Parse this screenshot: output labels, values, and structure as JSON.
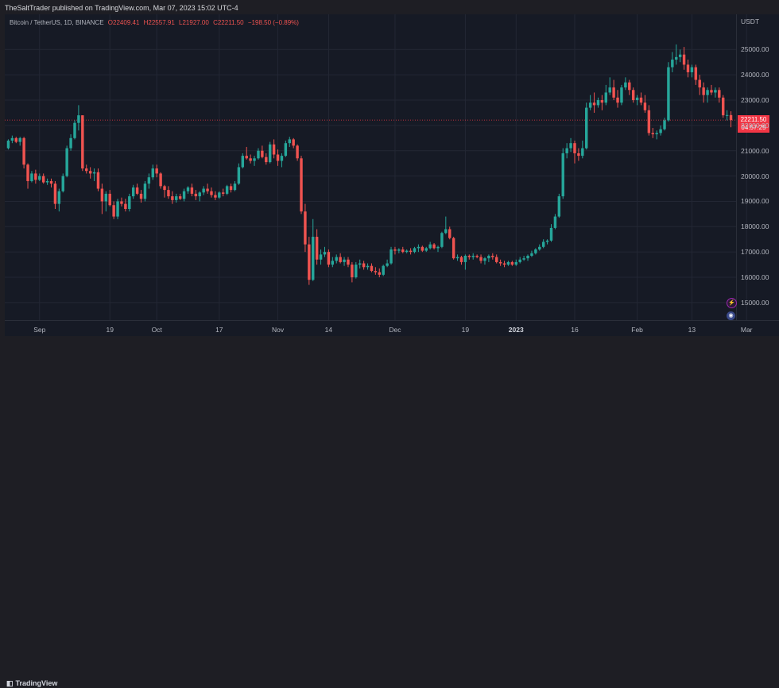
{
  "header": {
    "publisher_line": "TheSaltTrader published on TradingView.com, Mar 07, 2023 15:02 UTC-4"
  },
  "legend": {
    "symbol": "Bitcoin / TetherUS, 1D, BINANCE",
    "open": "O22409.41",
    "high": "H22557.91",
    "low": "L21927.00",
    "close": "C22211.50",
    "change": "−198.50 (−0.89%)"
  },
  "price_axis": {
    "unit": "USDT",
    "last_price": "22211.50",
    "countdown": "04:57:25"
  },
  "footer": {
    "brand": "TradingView"
  },
  "colors": {
    "up": "#26a69a",
    "down": "#ef5350",
    "background": "#161a25",
    "grid": "#232734",
    "last_price_line": "#f23645"
  },
  "chart_data": {
    "type": "candlestick",
    "ylabel": "USDT",
    "ylim": [
      14400,
      25700
    ],
    "y_ticks": [
      "15000.00",
      "16000.00",
      "17000.00",
      "18000.00",
      "19000.00",
      "20000.00",
      "21000.00",
      "22000.00",
      "23000.00",
      "24000.00",
      "25000.00"
    ],
    "x_ticks": [
      {
        "label": "Sep",
        "i": 8
      },
      {
        "label": "19",
        "i": 26
      },
      {
        "label": "Oct",
        "i": 38
      },
      {
        "label": "17",
        "i": 54
      },
      {
        "label": "Nov",
        "i": 69
      },
      {
        "label": "14",
        "i": 82
      },
      {
        "label": "Dec",
        "i": 99
      },
      {
        "label": "19",
        "i": 117
      },
      {
        "label": "2023",
        "i": 130,
        "bold": true
      },
      {
        "label": "16",
        "i": 145
      },
      {
        "label": "Feb",
        "i": 161
      },
      {
        "label": "13",
        "i": 175
      },
      {
        "label": "Mar",
        "i": 189
      }
    ],
    "last_price": 22211.5,
    "candles": [
      [
        21100,
        21450,
        21050,
        21400
      ],
      [
        21400,
        21600,
        21300,
        21500
      ],
      [
        21500,
        21550,
        21300,
        21350
      ],
      [
        21350,
        21550,
        21200,
        21500
      ],
      [
        21500,
        21550,
        20300,
        20450
      ],
      [
        20450,
        20500,
        19500,
        19800
      ],
      [
        19800,
        20200,
        19750,
        20100
      ],
      [
        20100,
        20250,
        19700,
        19850
      ],
      [
        19850,
        20100,
        19800,
        20000
      ],
      [
        20000,
        20100,
        19700,
        19750
      ],
      [
        19750,
        19900,
        19650,
        19800
      ],
      [
        19800,
        19900,
        19550,
        19700
      ],
      [
        19700,
        19800,
        18700,
        18900
      ],
      [
        18900,
        19500,
        18600,
        19400
      ],
      [
        19400,
        20100,
        19350,
        20000
      ],
      [
        20000,
        21200,
        19950,
        21100
      ],
      [
        21100,
        21650,
        21000,
        21500
      ],
      [
        21500,
        22200,
        21450,
        22100
      ],
      [
        22100,
        22800,
        21800,
        22400
      ],
      [
        22400,
        22400,
        20200,
        20300
      ],
      [
        20300,
        20450,
        20100,
        20200
      ],
      [
        20200,
        20350,
        19900,
        20100
      ],
      [
        20100,
        20300,
        19800,
        20150
      ],
      [
        20150,
        20300,
        19400,
        19500
      ],
      [
        19500,
        19700,
        18500,
        19000
      ],
      [
        19000,
        19400,
        18600,
        19300
      ],
      [
        19300,
        19450,
        18800,
        18850
      ],
      [
        18850,
        19000,
        18300,
        18400
      ],
      [
        18400,
        19100,
        18300,
        19000
      ],
      [
        19000,
        19150,
        18800,
        18900
      ],
      [
        18900,
        19100,
        18600,
        18700
      ],
      [
        18700,
        19300,
        18600,
        19200
      ],
      [
        19200,
        19650,
        19100,
        19550
      ],
      [
        19550,
        19700,
        19250,
        19300
      ],
      [
        19300,
        19450,
        18950,
        19100
      ],
      [
        19100,
        19800,
        19000,
        19700
      ],
      [
        19700,
        20100,
        19500,
        19950
      ],
      [
        19950,
        20450,
        19850,
        20300
      ],
      [
        20300,
        20450,
        19950,
        20100
      ],
      [
        20100,
        20150,
        19500,
        19600
      ],
      [
        19600,
        19650,
        19150,
        19450
      ],
      [
        19450,
        19600,
        19100,
        19200
      ],
      [
        19200,
        19400,
        18900,
        19050
      ],
      [
        19050,
        19300,
        18950,
        19200
      ],
      [
        19200,
        19300,
        19050,
        19100
      ],
      [
        19100,
        19500,
        19000,
        19400
      ],
      [
        19400,
        19600,
        19300,
        19550
      ],
      [
        19550,
        19700,
        19200,
        19300
      ],
      [
        19300,
        19450,
        19050,
        19200
      ],
      [
        19200,
        19400,
        19000,
        19350
      ],
      [
        19350,
        19600,
        19250,
        19500
      ],
      [
        19500,
        19700,
        19300,
        19400
      ],
      [
        19400,
        19550,
        19150,
        19250
      ],
      [
        19250,
        19400,
        19050,
        19150
      ],
      [
        19150,
        19400,
        19100,
        19350
      ],
      [
        19350,
        19500,
        19200,
        19300
      ],
      [
        19300,
        19650,
        19250,
        19600
      ],
      [
        19600,
        19700,
        19350,
        19450
      ],
      [
        19450,
        19800,
        19400,
        19700
      ],
      [
        19700,
        20500,
        19650,
        20350
      ],
      [
        20350,
        20900,
        20300,
        20800
      ],
      [
        20800,
        21150,
        20650,
        20700
      ],
      [
        20700,
        20850,
        20500,
        20600
      ],
      [
        20600,
        20800,
        20400,
        20700
      ],
      [
        20700,
        21100,
        20650,
        21000
      ],
      [
        21000,
        21200,
        20700,
        20750
      ],
      [
        20750,
        20900,
        20450,
        20550
      ],
      [
        20550,
        21350,
        20500,
        21250
      ],
      [
        21250,
        21450,
        20700,
        20850
      ],
      [
        20850,
        21050,
        20400,
        20600
      ],
      [
        20600,
        20900,
        20350,
        20800
      ],
      [
        20800,
        21400,
        20750,
        21300
      ],
      [
        21300,
        21550,
        21150,
        21450
      ],
      [
        21450,
        21500,
        21100,
        21200
      ],
      [
        21200,
        21250,
        20600,
        20700
      ],
      [
        20700,
        20800,
        18500,
        18600
      ],
      [
        18600,
        18900,
        17000,
        17300
      ],
      [
        17300,
        17600,
        15700,
        15900
      ],
      [
        15900,
        18300,
        15850,
        17600
      ],
      [
        17600,
        17900,
        16500,
        16700
      ],
      [
        16700,
        17100,
        16500,
        16900
      ],
      [
        16900,
        17200,
        16800,
        17000
      ],
      [
        17000,
        17100,
        16400,
        16500
      ],
      [
        16500,
        16800,
        16400,
        16650
      ],
      [
        16650,
        16900,
        16550,
        16800
      ],
      [
        16800,
        16950,
        16550,
        16600
      ],
      [
        16600,
        16800,
        16450,
        16700
      ],
      [
        16700,
        16800,
        16400,
        16500
      ],
      [
        16500,
        16600,
        15800,
        16000
      ],
      [
        16000,
        16600,
        15950,
        16500
      ],
      [
        16500,
        16700,
        16350,
        16550
      ],
      [
        16550,
        16650,
        16300,
        16400
      ],
      [
        16400,
        16550,
        16300,
        16450
      ],
      [
        16450,
        16550,
        16200,
        16250
      ],
      [
        16250,
        16400,
        16100,
        16200
      ],
      [
        16200,
        16350,
        16000,
        16100
      ],
      [
        16100,
        16500,
        16050,
        16450
      ],
      [
        16450,
        16700,
        16400,
        16550
      ],
      [
        16550,
        17200,
        16500,
        17100
      ],
      [
        17100,
        17200,
        16900,
        17050
      ],
      [
        17050,
        17150,
        16950,
        17100
      ],
      [
        17100,
        17200,
        16950,
        17000
      ],
      [
        17000,
        17100,
        16950,
        17050
      ],
      [
        17050,
        17150,
        16900,
        17000
      ],
      [
        17000,
        17200,
        16950,
        17150
      ],
      [
        17150,
        17300,
        17000,
        17200
      ],
      [
        17200,
        17250,
        17000,
        17050
      ],
      [
        17050,
        17200,
        17000,
        17150
      ],
      [
        17150,
        17400,
        17100,
        17300
      ],
      [
        17300,
        17350,
        17100,
        17150
      ],
      [
        17150,
        17250,
        17000,
        17200
      ],
      [
        17200,
        17800,
        17150,
        17750
      ],
      [
        17750,
        18400,
        17700,
        17900
      ],
      [
        17900,
        18000,
        17500,
        17550
      ],
      [
        17550,
        17600,
        16700,
        16750
      ],
      [
        16750,
        16900,
        16650,
        16800
      ],
      [
        16800,
        16850,
        16500,
        16600
      ],
      [
        16600,
        16900,
        16300,
        16850
      ],
      [
        16850,
        16900,
        16700,
        16800
      ],
      [
        16800,
        16950,
        16700,
        16850
      ],
      [
        16850,
        16900,
        16750,
        16800
      ],
      [
        16800,
        16900,
        16550,
        16650
      ],
      [
        16650,
        16800,
        16500,
        16750
      ],
      [
        16750,
        16900,
        16600,
        16850
      ],
      [
        16850,
        16950,
        16700,
        16800
      ],
      [
        16800,
        16900,
        16550,
        16600
      ],
      [
        16600,
        16700,
        16450,
        16550
      ],
      [
        16550,
        16650,
        16400,
        16500
      ],
      [
        16500,
        16650,
        16450,
        16600
      ],
      [
        16600,
        16650,
        16450,
        16500
      ],
      [
        16500,
        16700,
        16450,
        16600
      ],
      [
        16600,
        16800,
        16550,
        16700
      ],
      [
        16700,
        16850,
        16650,
        16750
      ],
      [
        16750,
        16900,
        16650,
        16850
      ],
      [
        16850,
        17050,
        16800,
        16950
      ],
      [
        16950,
        17150,
        16900,
        17100
      ],
      [
        17100,
        17300,
        17050,
        17200
      ],
      [
        17200,
        17500,
        17150,
        17400
      ],
      [
        17400,
        17500,
        17300,
        17450
      ],
      [
        17450,
        18100,
        17400,
        17950
      ],
      [
        17950,
        18500,
        17900,
        18400
      ],
      [
        18400,
        19300,
        18350,
        19200
      ],
      [
        19200,
        21100,
        19100,
        20900
      ],
      [
        20900,
        21300,
        20700,
        21100
      ],
      [
        21100,
        21500,
        20950,
        21300
      ],
      [
        21300,
        21400,
        20500,
        20900
      ],
      [
        20900,
        21100,
        20600,
        20800
      ],
      [
        20800,
        21400,
        20700,
        21100
      ],
      [
        21100,
        22900,
        21050,
        22700
      ],
      [
        22700,
        23200,
        22600,
        22900
      ],
      [
        22900,
        23300,
        22500,
        22800
      ],
      [
        22800,
        23100,
        22700,
        23000
      ],
      [
        23000,
        23200,
        22600,
        22900
      ],
      [
        22900,
        23600,
        22800,
        23300
      ],
      [
        23300,
        23900,
        23200,
        23500
      ],
      [
        23500,
        23800,
        23000,
        23100
      ],
      [
        23100,
        23400,
        22700,
        22900
      ],
      [
        22900,
        23600,
        22800,
        23500
      ],
      [
        23500,
        23900,
        23400,
        23700
      ],
      [
        23700,
        23800,
        23200,
        23400
      ],
      [
        23400,
        23500,
        22900,
        23000
      ],
      [
        23000,
        23200,
        22800,
        23100
      ],
      [
        23100,
        23300,
        22800,
        22900
      ],
      [
        22900,
        23200,
        22500,
        22600
      ],
      [
        22600,
        22800,
        21600,
        21700
      ],
      [
        21700,
        21900,
        21500,
        21650
      ],
      [
        21650,
        21800,
        21450,
        21700
      ],
      [
        21700,
        22000,
        21600,
        21850
      ],
      [
        21850,
        22300,
        21800,
        22200
      ],
      [
        22200,
        24500,
        22150,
        24300
      ],
      [
        24300,
        24900,
        24100,
        24600
      ],
      [
        24600,
        25200,
        24400,
        24700
      ],
      [
        24700,
        25000,
        24500,
        24800
      ],
      [
        24800,
        25100,
        24200,
        24400
      ],
      [
        24400,
        24600,
        23900,
        24100
      ],
      [
        24100,
        24400,
        23900,
        24300
      ],
      [
        24300,
        24400,
        23600,
        23800
      ],
      [
        23800,
        24000,
        23200,
        23500
      ],
      [
        23500,
        23700,
        22900,
        23200
      ],
      [
        23200,
        23500,
        22900,
        23400
      ],
      [
        23400,
        23600,
        23200,
        23300
      ],
      [
        23300,
        23500,
        23100,
        23400
      ],
      [
        23400,
        23500,
        22900,
        23100
      ],
      [
        23100,
        23200,
        22300,
        22400
      ],
      [
        22400,
        22600,
        22200,
        22410
      ],
      [
        22409.41,
        22557.91,
        21927,
        22211.5
      ]
    ]
  }
}
